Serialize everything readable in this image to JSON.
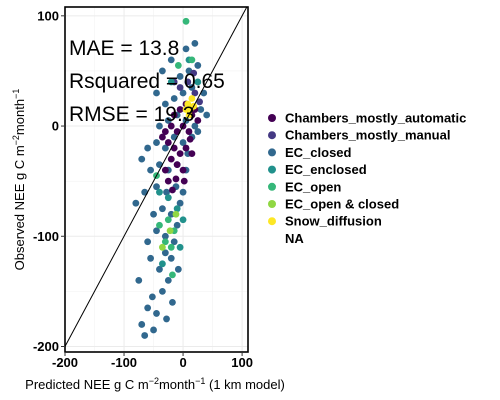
{
  "chart_data": {
    "type": "scatter",
    "xlabel": {
      "main": "Predicted NEE g C m",
      "sup1": "−2",
      "mid": "month",
      "sup2": "−1",
      "tail": " (1 km model)"
    },
    "ylabel": {
      "main": "Observed NEE g C m",
      "sup1": "−2",
      "mid": "month",
      "sup2": "−1"
    },
    "xlim": [
      -200,
      110
    ],
    "ylim": [
      -205,
      108
    ],
    "x_ticks": [
      {
        "value": -200,
        "label": "-200"
      },
      {
        "value": -100,
        "label": "-100"
      },
      {
        "value": 0,
        "label": "0"
      },
      {
        "value": 100,
        "label": "100"
      }
    ],
    "y_ticks": [
      {
        "value": -200,
        "label": "-200"
      },
      {
        "value": -100,
        "label": "-100"
      },
      {
        "value": 0,
        "label": "0"
      },
      {
        "value": 100,
        "label": "100"
      }
    ],
    "grid": true,
    "identity_line": true,
    "stats": [
      "MAE = 13.8",
      "Rsquared = 0.65",
      "RMSE = 19.3"
    ],
    "legend_position": "right",
    "series": [
      {
        "name": "Chambers_mostly_automatic",
        "color": "#440154"
      },
      {
        "name": "Chambers_mostly_manual",
        "color": "#443983"
      },
      {
        "name": "EC_closed",
        "color": "#31688e"
      },
      {
        "name": "EC_enclosed",
        "color": "#21918c"
      },
      {
        "name": "EC_open",
        "color": "#35b779"
      },
      {
        "name": "EC_open & closed",
        "color": "#90d743"
      },
      {
        "name": "Snow_diffusion",
        "color": "#fde725"
      },
      {
        "name": "NA",
        "color": "#ffffff"
      }
    ],
    "points": [
      {
        "s": 2,
        "x": -70,
        "y": -180
      },
      {
        "s": 2,
        "x": -60,
        "y": -165
      },
      {
        "s": 2,
        "x": -45,
        "y": -170
      },
      {
        "s": 2,
        "x": -52,
        "y": -155
      },
      {
        "s": 2,
        "x": -35,
        "y": -150
      },
      {
        "s": 2,
        "x": -25,
        "y": -140
      },
      {
        "s": 2,
        "x": -40,
        "y": -130
      },
      {
        "s": 2,
        "x": -55,
        "y": -120
      },
      {
        "s": 2,
        "x": -30,
        "y": -115
      },
      {
        "s": 2,
        "x": -20,
        "y": -120
      },
      {
        "s": 2,
        "x": -60,
        "y": -105
      },
      {
        "s": 2,
        "x": -45,
        "y": -95
      },
      {
        "s": 2,
        "x": -30,
        "y": -100
      },
      {
        "s": 2,
        "x": -15,
        "y": -105
      },
      {
        "s": 2,
        "x": -10,
        "y": -90
      },
      {
        "s": 2,
        "x": -50,
        "y": -80
      },
      {
        "s": 2,
        "x": -35,
        "y": -75
      },
      {
        "s": 2,
        "x": -20,
        "y": -80
      },
      {
        "s": 2,
        "x": -5,
        "y": -70
      },
      {
        "s": 2,
        "x": -65,
        "y": -60
      },
      {
        "s": 2,
        "x": -45,
        "y": -55
      },
      {
        "s": 2,
        "x": -28,
        "y": -60
      },
      {
        "s": 2,
        "x": -12,
        "y": -55
      },
      {
        "s": 2,
        "x": 0,
        "y": -60
      },
      {
        "s": 2,
        "x": -55,
        "y": -40
      },
      {
        "s": 2,
        "x": -40,
        "y": -35
      },
      {
        "s": 2,
        "x": -25,
        "y": -40
      },
      {
        "s": 2,
        "x": -10,
        "y": -35
      },
      {
        "s": 2,
        "x": 5,
        "y": -40
      },
      {
        "s": 2,
        "x": -60,
        "y": -20
      },
      {
        "s": 2,
        "x": -45,
        "y": -15
      },
      {
        "s": 2,
        "x": -30,
        "y": -20
      },
      {
        "s": 2,
        "x": -15,
        "y": -10
      },
      {
        "s": 2,
        "x": 0,
        "y": -15
      },
      {
        "s": 2,
        "x": 15,
        "y": -10
      },
      {
        "s": 2,
        "x": -40,
        "y": 0
      },
      {
        "s": 2,
        "x": -25,
        "y": 5
      },
      {
        "s": 2,
        "x": -10,
        "y": 10
      },
      {
        "s": 2,
        "x": 5,
        "y": 5
      },
      {
        "s": 2,
        "x": 20,
        "y": 0
      },
      {
        "s": 2,
        "x": 30,
        "y": 15
      },
      {
        "s": 2,
        "x": -30,
        "y": 20
      },
      {
        "s": 2,
        "x": -15,
        "y": 25
      },
      {
        "s": 2,
        "x": 0,
        "y": 30
      },
      {
        "s": 2,
        "x": 15,
        "y": 35
      },
      {
        "s": 2,
        "x": -45,
        "y": 30
      },
      {
        "s": 2,
        "x": -5,
        "y": 45
      },
      {
        "s": 2,
        "x": 10,
        "y": 50
      },
      {
        "s": 2,
        "x": 25,
        "y": 55
      },
      {
        "s": 2,
        "x": -20,
        "y": 60
      },
      {
        "s": 2,
        "x": 5,
        "y": 70
      },
      {
        "s": 2,
        "x": 20,
        "y": 75
      },
      {
        "s": 2,
        "x": 35,
        "y": 30
      },
      {
        "s": 2,
        "x": -75,
        "y": -140
      },
      {
        "s": 2,
        "x": -65,
        "y": -190
      },
      {
        "s": 2,
        "x": -50,
        "y": -185
      },
      {
        "s": 2,
        "x": -80,
        "y": -70
      },
      {
        "s": 2,
        "x": -70,
        "y": -30
      },
      {
        "s": 2,
        "x": -35,
        "y": 50
      },
      {
        "s": 2,
        "x": -28,
        "y": -175
      },
      {
        "s": 2,
        "x": -18,
        "y": -160
      },
      {
        "s": 2,
        "x": -8,
        "y": -130
      },
      {
        "s": 2,
        "x": 8,
        "y": -25
      },
      {
        "s": 2,
        "x": 25,
        "y": -5
      },
      {
        "s": 2,
        "x": 40,
        "y": 10
      },
      {
        "s": 0,
        "x": -30,
        "y": -5
      },
      {
        "s": 0,
        "x": -20,
        "y": 0
      },
      {
        "s": 0,
        "x": -10,
        "y": -5
      },
      {
        "s": 0,
        "x": 0,
        "y": 0
      },
      {
        "s": 0,
        "x": 10,
        "y": -5
      },
      {
        "s": 0,
        "x": -25,
        "y": -15
      },
      {
        "s": 0,
        "x": -15,
        "y": -20
      },
      {
        "s": 0,
        "x": -5,
        "y": -25
      },
      {
        "s": 0,
        "x": 5,
        "y": -20
      },
      {
        "s": 0,
        "x": 15,
        "y": -25
      },
      {
        "s": 0,
        "x": -20,
        "y": -30
      },
      {
        "s": 0,
        "x": -10,
        "y": -35
      },
      {
        "s": 0,
        "x": 0,
        "y": -40
      },
      {
        "s": 0,
        "x": -15,
        "y": 10
      },
      {
        "s": 0,
        "x": -5,
        "y": 15
      },
      {
        "s": 0,
        "x": 5,
        "y": 20
      },
      {
        "s": 0,
        "x": 15,
        "y": 10
      },
      {
        "s": 0,
        "x": -30,
        "y": -40
      },
      {
        "s": 0,
        "x": -25,
        "y": -50
      },
      {
        "s": 0,
        "x": -12,
        "y": -48
      },
      {
        "s": 0,
        "x": 2,
        "y": -50
      },
      {
        "s": 0,
        "x": 20,
        "y": 15
      },
      {
        "s": 0,
        "x": 25,
        "y": 5
      },
      {
        "s": 0,
        "x": -35,
        "y": -10
      },
      {
        "s": 0,
        "x": 12,
        "y": -12
      },
      {
        "s": 0,
        "x": -18,
        "y": -58
      },
      {
        "s": 1,
        "x": -5,
        "y": 35
      },
      {
        "s": 1,
        "x": 8,
        "y": 40
      },
      {
        "s": 1,
        "x": 20,
        "y": 30
      },
      {
        "s": 1,
        "x": -15,
        "y": 40
      },
      {
        "s": 1,
        "x": 28,
        "y": 22
      },
      {
        "s": 1,
        "x": 18,
        "y": 48
      },
      {
        "s": 3,
        "x": -25,
        "y": -65
      },
      {
        "s": 3,
        "x": -10,
        "y": -75
      },
      {
        "s": 3,
        "x": 0,
        "y": -85
      },
      {
        "s": 3,
        "x": -40,
        "y": -60
      },
      {
        "s": 3,
        "x": -20,
        "y": 40
      },
      {
        "s": 3,
        "x": 10,
        "y": 60
      },
      {
        "s": 3,
        "x": 25,
        "y": 40
      },
      {
        "s": 3,
        "x": -5,
        "y": -110
      },
      {
        "s": 3,
        "x": -35,
        "y": -125
      },
      {
        "s": 4,
        "x": -30,
        "y": -105
      },
      {
        "s": 4,
        "x": -20,
        "y": -110
      },
      {
        "s": 4,
        "x": -40,
        "y": -90
      },
      {
        "s": 4,
        "x": -25,
        "y": -85
      },
      {
        "s": 4,
        "x": -15,
        "y": -95
      },
      {
        "s": 4,
        "x": 5,
        "y": 95
      },
      {
        "s": 4,
        "x": 15,
        "y": 60
      },
      {
        "s": 4,
        "x": -8,
        "y": 55
      },
      {
        "s": 4,
        "x": -45,
        "y": -45
      },
      {
        "s": 4,
        "x": -18,
        "y": -135
      },
      {
        "s": 5,
        "x": -35,
        "y": -110
      },
      {
        "s": 5,
        "x": -22,
        "y": -95
      },
      {
        "s": 5,
        "x": -12,
        "y": -80
      },
      {
        "s": 6,
        "x": 8,
        "y": 20
      },
      {
        "s": 6,
        "x": 12,
        "y": 15
      },
      {
        "s": 6,
        "x": 15,
        "y": 25
      },
      {
        "s": 6,
        "x": 10,
        "y": 10
      },
      {
        "s": 6,
        "x": 18,
        "y": 18
      },
      {
        "s": 6,
        "x": 5,
        "y": 15
      }
    ]
  }
}
